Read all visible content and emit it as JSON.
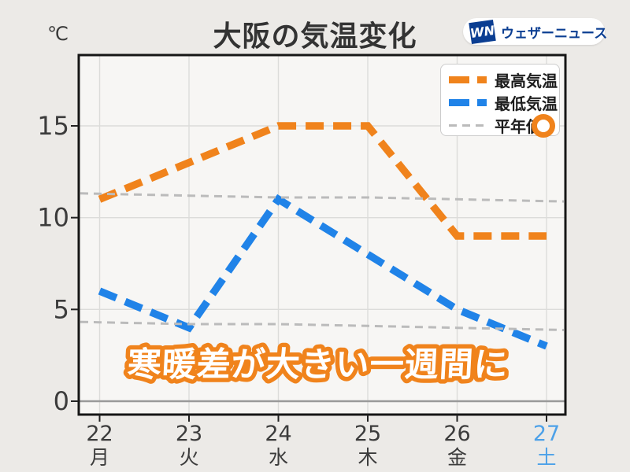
{
  "header": {
    "unit_label": "℃",
    "logo": {
      "monogram": "WN",
      "brand": "ウェザーニュース"
    }
  },
  "legend": {
    "items": [
      {
        "label": "最高気温"
      },
      {
        "label": "最低気温"
      },
      {
        "label": "平年値"
      }
    ]
  },
  "colors": {
    "max": "#F0831C",
    "min": "#2083E8",
    "normal": "#BBBBBB",
    "weekend": "#4DA1E8",
    "axis_text": "#3C3C3C",
    "annotation_fill": "#FFFFFF",
    "annotation_stroke": "#F0831C",
    "logo_navy": "#0B3E92",
    "background": "#ECEAE7",
    "plot_background": "#F7F6F4",
    "grid": "#DCDCDA",
    "zero_line": "#9A9A9A",
    "border": "#161616"
  },
  "chart_data": {
    "type": "line",
    "title": "大阪の気温変化",
    "unit": "℃",
    "annotation": "寒暖差が大きい一週間に",
    "x_categories": [
      {
        "date": "22",
        "dow": "月",
        "weekend": false
      },
      {
        "date": "23",
        "dow": "火",
        "weekend": false
      },
      {
        "date": "24",
        "dow": "水",
        "weekend": false
      },
      {
        "date": "25",
        "dow": "木",
        "weekend": false
      },
      {
        "date": "26",
        "dow": "金",
        "weekend": false
      },
      {
        "date": "27",
        "dow": "土",
        "weekend": true
      }
    ],
    "yticks": [
      0,
      5,
      10,
      15
    ],
    "ylim": [
      -0.7,
      18.8
    ],
    "grid": true,
    "legend_position": "top-right",
    "series": [
      {
        "name": "最高気温",
        "key": "max",
        "color": "#F0831C",
        "dash": "thick",
        "extend": false,
        "values": [
          11,
          13,
          15,
          15,
          9,
          9
        ]
      },
      {
        "name": "最低気温",
        "key": "min",
        "color": "#2083E8",
        "dash": "thick",
        "extend": false,
        "values": [
          6,
          4,
          11,
          8,
          5,
          3
        ]
      },
      {
        "name": "平年値(最高)",
        "key": "normal_high",
        "color": "#BBBBBB",
        "dash": "thin",
        "extend": true,
        "values": [
          11.3,
          11.2,
          11.1,
          11.1,
          11.0,
          10.9
        ]
      },
      {
        "name": "平年値(最低)",
        "key": "normal_low",
        "color": "#BBBBBB",
        "dash": "thin",
        "extend": true,
        "values": [
          4.3,
          4.2,
          4.2,
          4.1,
          4.0,
          3.9
        ]
      }
    ]
  }
}
